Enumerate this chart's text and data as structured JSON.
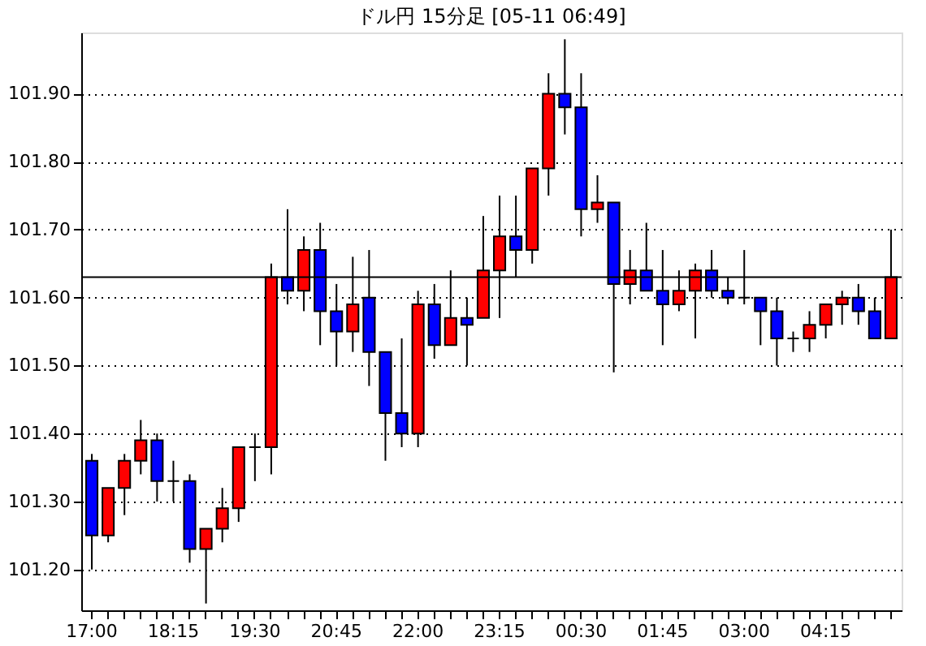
{
  "chart_data": {
    "type": "candlestick",
    "title": "ドル円 15分足 [05-11 06:49]",
    "categories": [
      "17:00",
      null,
      null,
      null,
      null,
      "18:15",
      null,
      null,
      null,
      null,
      "19:30",
      null,
      null,
      null,
      null,
      "20:45",
      null,
      null,
      null,
      null,
      "22:00",
      null,
      null,
      null,
      null,
      "23:15",
      null,
      null,
      null,
      null,
      "00:30",
      null,
      null,
      null,
      null,
      "01:45",
      null,
      null,
      null,
      null,
      "03:00",
      null,
      null,
      null,
      null,
      "04:15",
      null,
      null,
      null,
      null
    ],
    "ohlc": [
      [
        101.36,
        101.37,
        101.2,
        101.25
      ],
      [
        101.25,
        101.32,
        101.24,
        101.32
      ],
      [
        101.32,
        101.37,
        101.28,
        101.36
      ],
      [
        101.36,
        101.42,
        101.34,
        101.39
      ],
      [
        101.39,
        101.4,
        101.3,
        101.33
      ],
      [
        101.33,
        101.36,
        101.3,
        101.33
      ],
      [
        101.33,
        101.34,
        101.21,
        101.23
      ],
      [
        101.23,
        101.26,
        101.15,
        101.26
      ],
      [
        101.26,
        101.32,
        101.24,
        101.29
      ],
      [
        101.29,
        101.38,
        101.27,
        101.38
      ],
      [
        101.38,
        101.4,
        101.33,
        101.38
      ],
      [
        101.38,
        101.65,
        101.34,
        101.63
      ],
      [
        101.63,
        101.73,
        101.59,
        101.61
      ],
      [
        101.61,
        101.69,
        101.58,
        101.67
      ],
      [
        101.67,
        101.71,
        101.53,
        101.58
      ],
      [
        101.58,
        101.62,
        101.5,
        101.55
      ],
      [
        101.55,
        101.66,
        101.52,
        101.59
      ],
      [
        101.6,
        101.67,
        101.47,
        101.52
      ],
      [
        101.52,
        101.52,
        101.36,
        101.43
      ],
      [
        101.43,
        101.54,
        101.38,
        101.4
      ],
      [
        101.4,
        101.61,
        101.38,
        101.59
      ],
      [
        101.59,
        101.62,
        101.51,
        101.53
      ],
      [
        101.53,
        101.64,
        101.53,
        101.57
      ],
      [
        101.57,
        101.6,
        101.5,
        101.56
      ],
      [
        101.57,
        101.72,
        101.57,
        101.64
      ],
      [
        101.64,
        101.75,
        101.57,
        101.69
      ],
      [
        101.69,
        101.75,
        101.63,
        101.67
      ],
      [
        101.67,
        101.79,
        101.65,
        101.79
      ],
      [
        101.79,
        101.93,
        101.75,
        101.9
      ],
      [
        101.9,
        101.98,
        101.84,
        101.88
      ],
      [
        101.88,
        101.93,
        101.69,
        101.73
      ],
      [
        101.73,
        101.78,
        101.71,
        101.74
      ],
      [
        101.74,
        101.74,
        101.49,
        101.62
      ],
      [
        101.62,
        101.67,
        101.59,
        101.64
      ],
      [
        101.64,
        101.71,
        101.61,
        101.61
      ],
      [
        101.61,
        101.67,
        101.53,
        101.59
      ],
      [
        101.59,
        101.64,
        101.58,
        101.61
      ],
      [
        101.61,
        101.65,
        101.54,
        101.64
      ],
      [
        101.64,
        101.67,
        101.6,
        101.61
      ],
      [
        101.61,
        101.63,
        101.59,
        101.6
      ],
      [
        101.6,
        101.67,
        101.59,
        101.6
      ],
      [
        101.6,
        101.6,
        101.53,
        101.58
      ],
      [
        101.58,
        101.6,
        101.5,
        101.54
      ],
      [
        101.54,
        101.55,
        101.52,
        101.54
      ],
      [
        101.54,
        101.58,
        101.52,
        101.56
      ],
      [
        101.56,
        101.59,
        101.54,
        101.59
      ],
      [
        101.59,
        101.61,
        101.56,
        101.6
      ],
      [
        101.6,
        101.62,
        101.56,
        101.58
      ],
      [
        101.58,
        101.6,
        101.54,
        101.54
      ],
      [
        101.54,
        101.7,
        101.54,
        101.63
      ]
    ],
    "colors": [
      "#0000ff",
      "#ff0000",
      "#ff0000",
      "#ff0000",
      "#0000ff",
      "#000000",
      "#0000ff",
      "#ff0000",
      "#ff0000",
      "#ff0000",
      "#000000",
      "#ff0000",
      "#0000ff",
      "#ff0000",
      "#0000ff",
      "#0000ff",
      "#ff0000",
      "#0000ff",
      "#0000ff",
      "#0000ff",
      "#ff0000",
      "#0000ff",
      "#ff0000",
      "#0000ff",
      "#ff0000",
      "#ff0000",
      "#0000ff",
      "#ff0000",
      "#ff0000",
      "#0000ff",
      "#0000ff",
      "#ff0000",
      "#0000ff",
      "#ff0000",
      "#0000ff",
      "#0000ff",
      "#ff0000",
      "#ff0000",
      "#0000ff",
      "#0000ff",
      "#000000",
      "#0000ff",
      "#0000ff",
      "#000000",
      "#ff0000",
      "#ff0000",
      "#ff0000",
      "#0000ff",
      "#0000ff",
      "#ff0000"
    ],
    "ylim": [
      101.14,
      101.99
    ],
    "yticks": [
      {
        "value": 101.2,
        "label": "101.20"
      },
      {
        "value": 101.3,
        "label": "101.30"
      },
      {
        "value": 101.4,
        "label": "101.40"
      },
      {
        "value": 101.5,
        "label": "101.50"
      },
      {
        "value": 101.6,
        "label": "101.60"
      },
      {
        "value": 101.7,
        "label": "101.70"
      },
      {
        "value": 101.8,
        "label": "101.80"
      },
      {
        "value": 101.9,
        "label": "101.90"
      }
    ],
    "grid": "y",
    "ref_lines": [
      {
        "axis": "y",
        "value": 101.63,
        "color": "#000000"
      }
    ]
  }
}
